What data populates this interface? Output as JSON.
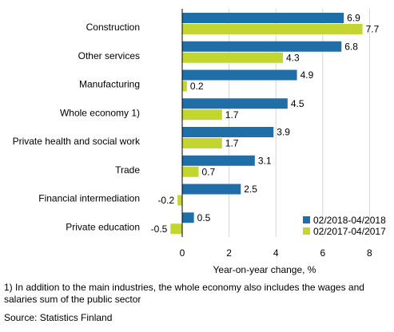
{
  "chart_data": {
    "type": "bar",
    "orientation": "horizontal",
    "categories": [
      "Construction",
      "Other services",
      "Manufacturing",
      "Whole economy 1)",
      "Private health and social work",
      "Trade",
      "Financial intermediation",
      "Private education"
    ],
    "series": [
      {
        "name": "02/2018-04/2018",
        "color": "#1f6ea8",
        "values": [
          6.9,
          6.8,
          4.9,
          4.5,
          3.9,
          3.1,
          2.5,
          0.5
        ]
      },
      {
        "name": "02/2017-04/2017",
        "color": "#c3d531",
        "values": [
          7.7,
          4.3,
          0.2,
          1.7,
          1.7,
          0.7,
          -0.2,
          -0.5
        ]
      }
    ],
    "value_labels": [
      [
        "6.9",
        "6.8",
        "4.9",
        "4.5",
        "3.9",
        "3.1",
        "2.5",
        "0.5"
      ],
      [
        "7.7",
        "4.3",
        "0.2",
        "1.7",
        "1.7",
        "0.7",
        "-0.2",
        "-0.5"
      ]
    ],
    "xlabel": "Year-on-year change, %",
    "xlim": [
      -1.2,
      8.7
    ],
    "xticks": [
      0,
      2,
      4,
      6,
      8
    ],
    "xtick_labels": [
      "0",
      "2",
      "4",
      "6",
      "8"
    ],
    "legend_position": "bottom-right",
    "grid": "vertical"
  },
  "footnote": "1) In addition to the main industries, the whole economy also includes the wages and salaries sum of the public sector",
  "source": "Source: Statistics Finland"
}
